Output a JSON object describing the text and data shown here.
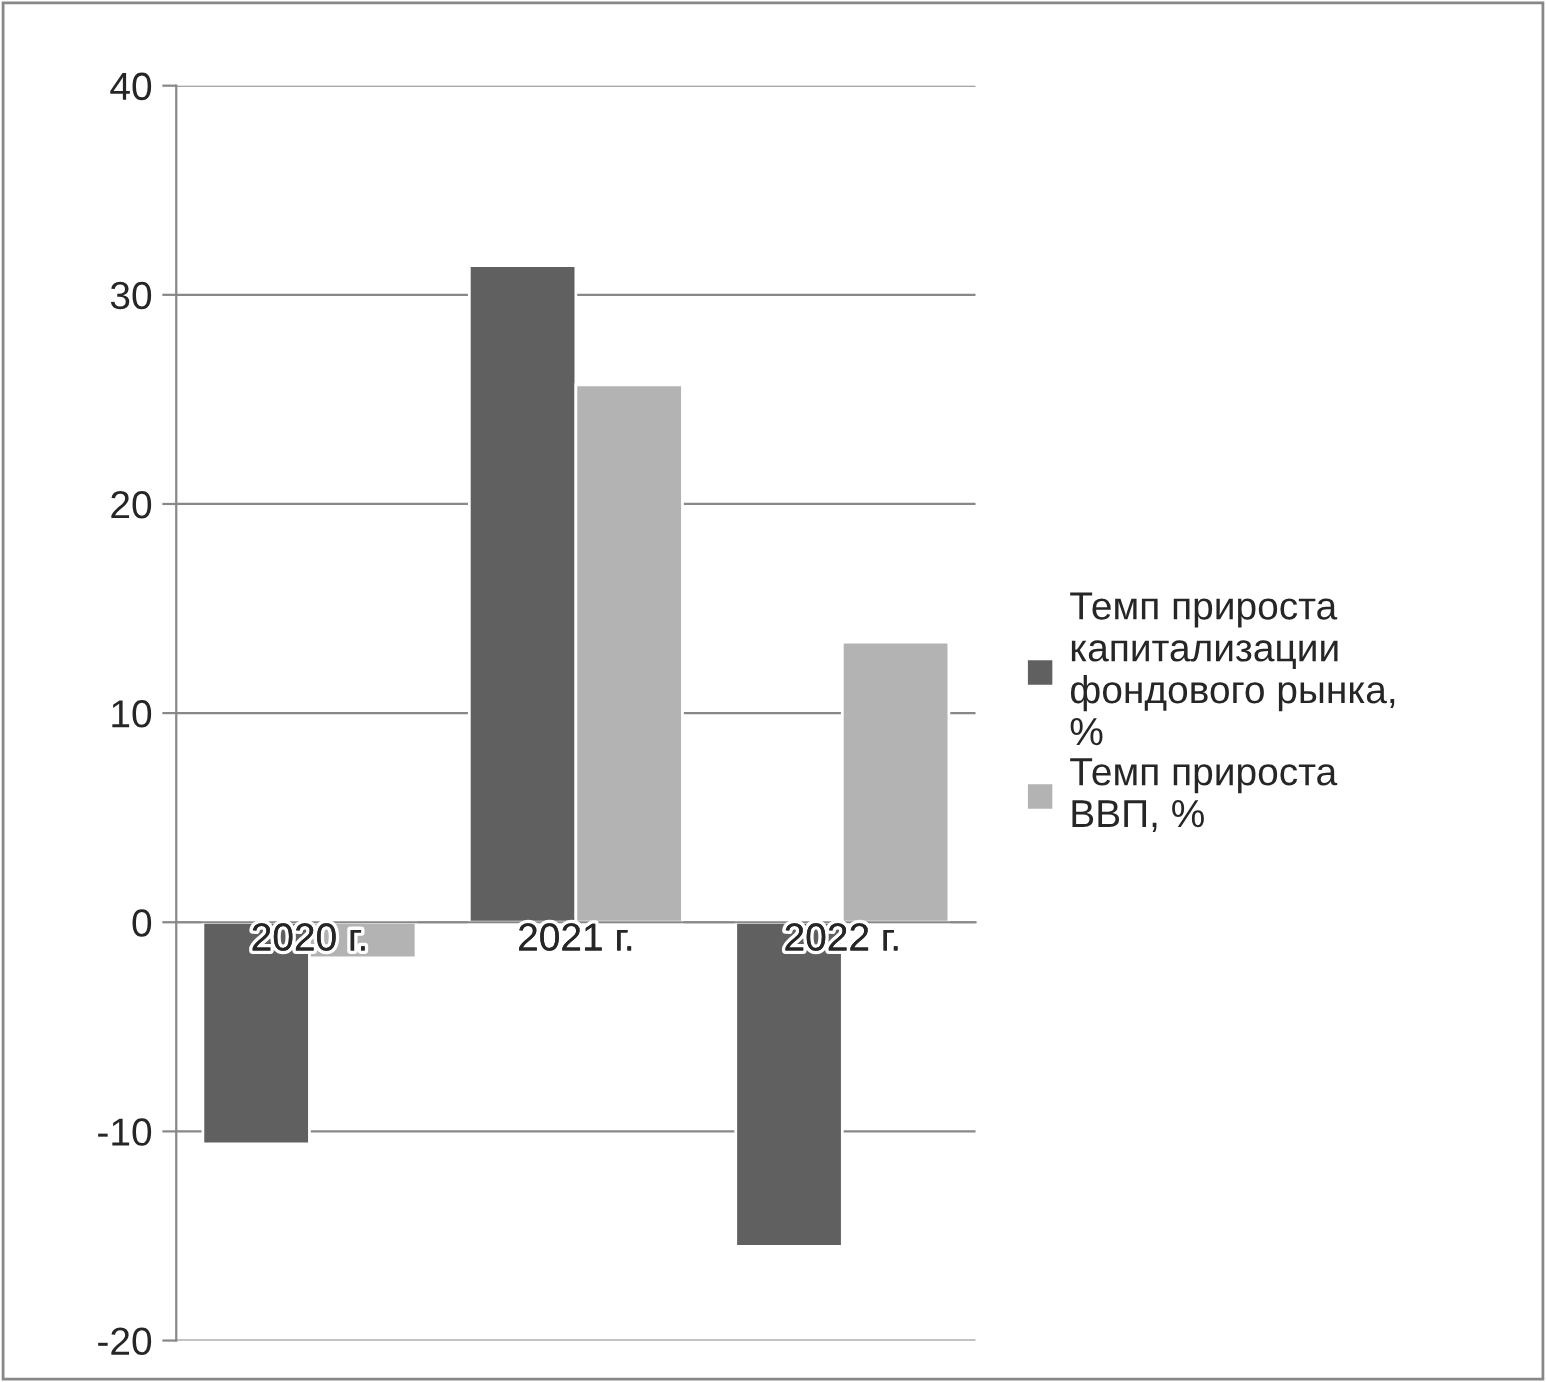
{
  "chart_data": {
    "type": "bar",
    "categories": [
      "2020 г.",
      "2021 г.",
      "2022 г."
    ],
    "series": [
      {
        "name": "Темп прироста капитализации фондового рынка, %",
        "color": "#606060",
        "values": [
          -10.6,
          31.4,
          -15.5
        ]
      },
      {
        "name": "Темп прироста ВВП, %",
        "color": "#b3b3b3",
        "values": [
          -1.7,
          25.7,
          13.4
        ]
      }
    ],
    "ylim": [
      -20,
      40
    ],
    "yticks": [
      -20,
      -10,
      0,
      10,
      20,
      30,
      40
    ],
    "grid": "y",
    "legend": "right"
  }
}
